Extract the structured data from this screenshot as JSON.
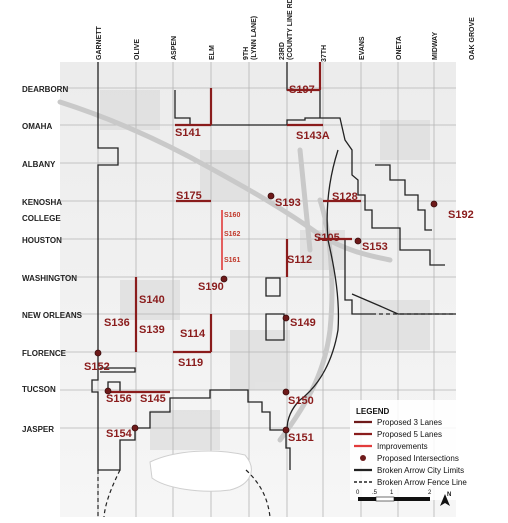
{
  "streets_ew": [
    "DEARBORN",
    "OMAHA",
    "ALBANY",
    "KENOSHA",
    "COLLEGE",
    "HOUSTON",
    "WASHINGTON",
    "NEW ORLEANS",
    "FLORENCE",
    "TUCSON",
    "JASPER"
  ],
  "streets_ns": [
    "GARNETT",
    "OLIVE",
    "ASPEN",
    "ELM",
    "9TH\n(LYNN LANE)",
    "23RD\n(COUNTY LINE RD)",
    "37TH",
    "EVANS",
    "ONETA",
    "MIDWAY",
    "OAK GROVE"
  ],
  "projects": [
    {
      "id": "S197",
      "size": "lg"
    },
    {
      "id": "S141",
      "size": "lg"
    },
    {
      "id": "S143A",
      "size": "lg"
    },
    {
      "id": "S175",
      "size": "lg"
    },
    {
      "id": "S193",
      "size": "lg"
    },
    {
      "id": "S128",
      "size": "lg"
    },
    {
      "id": "S192",
      "size": "lg"
    },
    {
      "id": "S160",
      "size": "sm"
    },
    {
      "id": "S162",
      "size": "sm"
    },
    {
      "id": "S161",
      "size": "sm"
    },
    {
      "id": "S105",
      "size": "lg"
    },
    {
      "id": "S153",
      "size": "lg"
    },
    {
      "id": "S112",
      "size": "lg"
    },
    {
      "id": "S190",
      "size": "lg"
    },
    {
      "id": "S140",
      "size": "lg"
    },
    {
      "id": "S136",
      "size": "lg"
    },
    {
      "id": "S139",
      "size": "lg"
    },
    {
      "id": "S149",
      "size": "lg"
    },
    {
      "id": "S114",
      "size": "lg"
    },
    {
      "id": "S119",
      "size": "lg"
    },
    {
      "id": "S152",
      "size": "lg"
    },
    {
      "id": "S156",
      "size": "lg"
    },
    {
      "id": "S145",
      "size": "lg"
    },
    {
      "id": "S150",
      "size": "lg"
    },
    {
      "id": "S154",
      "size": "lg"
    },
    {
      "id": "S151",
      "size": "lg"
    }
  ],
  "legend": {
    "title": "LEGEND",
    "items": [
      {
        "label": "Proposed 3 Lanes",
        "type": "line",
        "color": "#6e1a1a"
      },
      {
        "label": "Proposed 5 Lanes",
        "type": "line",
        "color": "#8a1c1c"
      },
      {
        "label": "Improvements",
        "type": "line",
        "color": "#e23b3b"
      },
      {
        "label": "Proposed Intersections",
        "type": "circle",
        "color": "#6e1a1a"
      },
      {
        "label": "Broken Arrow City Limits",
        "type": "line",
        "color": "#222222"
      },
      {
        "label": "Broken Arrow Fence Line",
        "type": "dash",
        "color": "#222222"
      }
    ]
  },
  "scale": {
    "ticks": [
      "0",
      ".5",
      "1",
      "2"
    ],
    "north": "N"
  },
  "colors": {
    "red_dark": "#8a1c1c",
    "red_light": "#e23b3b",
    "boundary": "#222222"
  }
}
